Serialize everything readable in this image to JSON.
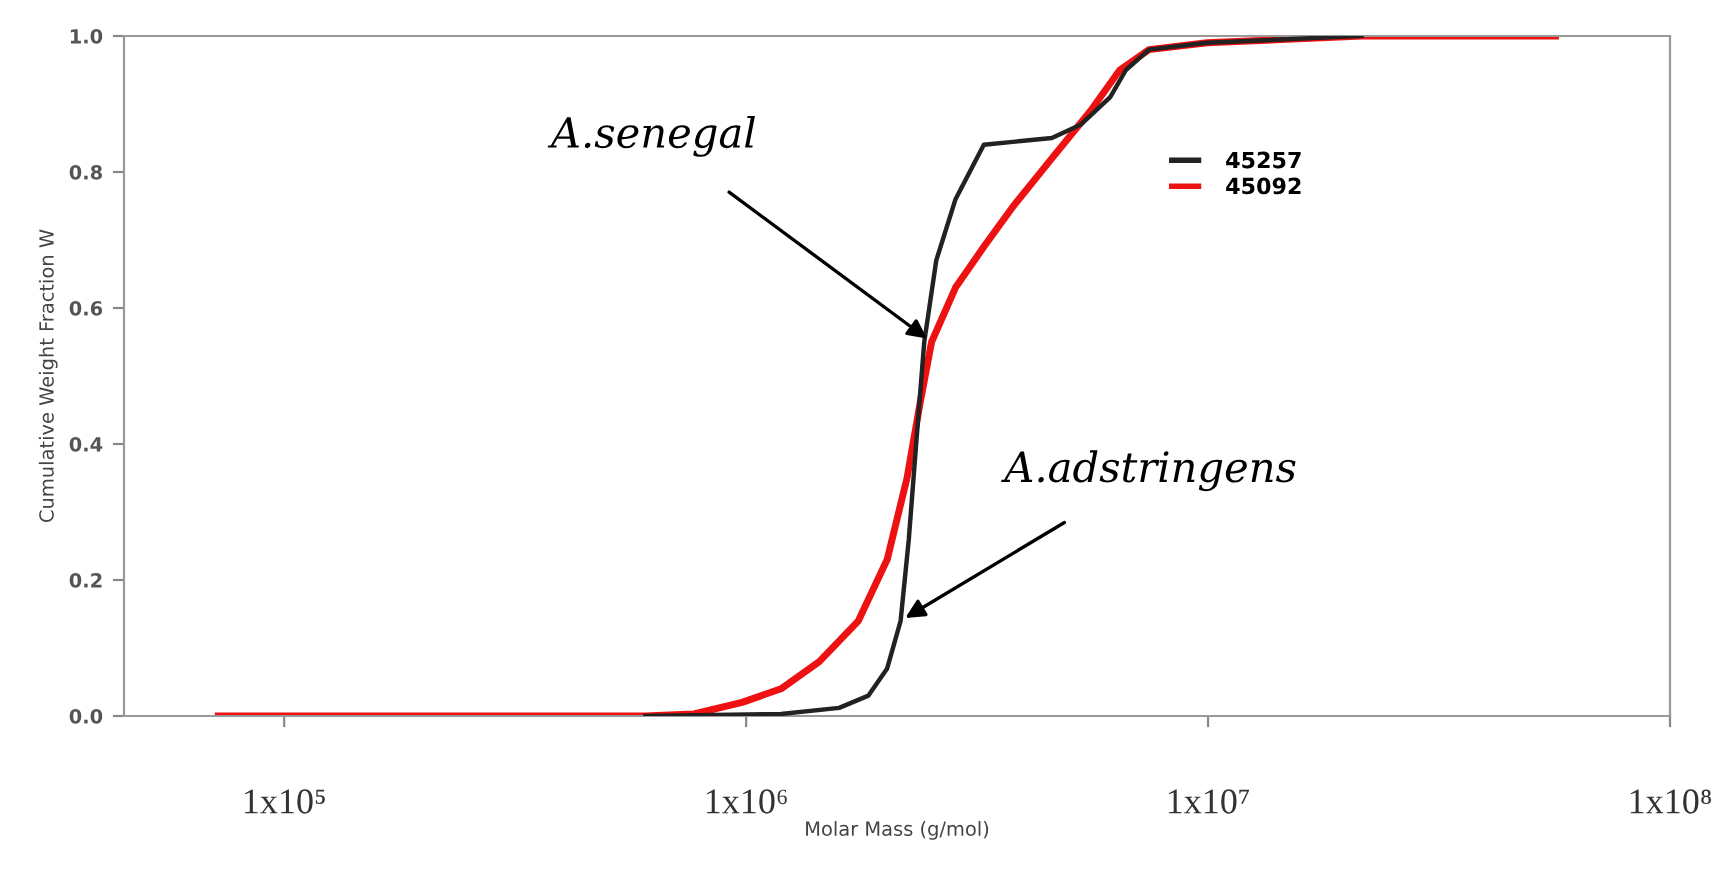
{
  "chart_data": {
    "type": "line",
    "xlabel": "Molar Mass (g/mol)",
    "ylabel": "Cumulative Weight Fraction W",
    "log": "x",
    "xlim": [
      45000,
      100000000
    ],
    "xticks": [
      {
        "value": 100000,
        "label": "1x10⁵"
      },
      {
        "value": 1000000,
        "label": "1x10⁶"
      },
      {
        "value": 10000000,
        "label": "1x10⁷"
      },
      {
        "value": 100000000,
        "label": "1x10⁸"
      }
    ],
    "ylim": [
      0,
      1
    ],
    "yticks": [
      {
        "value": 0,
        "label": "0.0"
      },
      {
        "value": 0.2,
        "label": "0.2"
      },
      {
        "value": 0.4,
        "label": "0.4"
      },
      {
        "value": 0.6,
        "label": "0.6"
      },
      {
        "value": 0.8,
        "label": "0.8"
      },
      {
        "value": 1,
        "label": "1.0"
      }
    ],
    "grid": false,
    "legend": "top",
    "marker": "none",
    "line_style": "solid",
    "series": [
      {
        "name": "45257",
        "color": "#222222",
        "x": [
          605000,
          1190000,
          1590000,
          1840000,
          2020000,
          2160000,
          2250000,
          2340000,
          2430000,
          2580000,
          2840000,
          3270000,
          4590000,
          5310000,
          6140000,
          6640000,
          7450000,
          9950000,
          21500000
        ],
        "values": [
          0,
          0.003,
          0.012,
          0.03,
          0.07,
          0.14,
          0.26,
          0.41,
          0.55,
          0.67,
          0.76,
          0.84,
          0.85,
          0.87,
          0.91,
          0.95,
          0.98,
          0.99,
          1.0
        ]
      },
      {
        "name": "45092",
        "color": "#ee1111",
        "x": [
          72000,
          279000,
          605000,
          771000,
          980000,
          1190000,
          1440000,
          1750000,
          2020000,
          2230000,
          2380000,
          2520000,
          2840000,
          3270000,
          3790000,
          4590000,
          5570000,
          6440000,
          7450000,
          9950000,
          21500000,
          56500000
        ],
        "values": [
          0,
          0,
          0,
          0.003,
          0.02,
          0.04,
          0.08,
          0.14,
          0.23,
          0.35,
          0.46,
          0.55,
          0.63,
          0.69,
          0.75,
          0.82,
          0.89,
          0.95,
          0.98,
          0.99,
          1.0,
          1.0
        ]
      }
    ],
    "annotations": [
      {
        "text": "A.senegal",
        "x": 2520000,
        "y": 0.55
      },
      {
        "text": "A.adstringens",
        "x": 2160000,
        "y": 0.14
      }
    ]
  }
}
